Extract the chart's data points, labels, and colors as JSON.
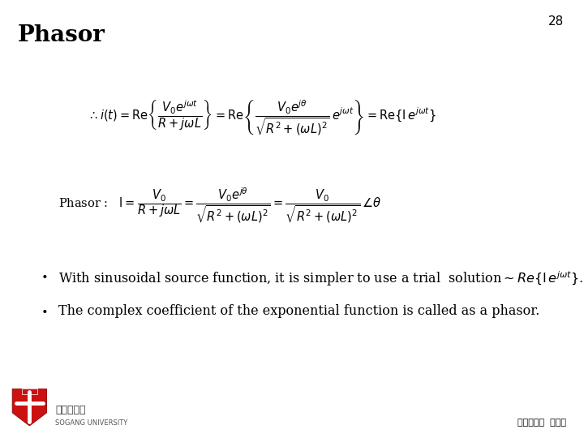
{
  "title": "Phasor",
  "slide_number": "28",
  "background_color": "#ffffff",
  "title_color": "#000000",
  "title_fontsize": 20,
  "eq1_fontsize": 10.5,
  "eq2_fontsize": 10.5,
  "bullet_fontsize": 11.5,
  "footer_fontsize": 8,
  "text_color": "#000000",
  "bullet2": "The complex coefficient of the exponential function is called as a phasor.",
  "footer_right": "전자공학과  이행선"
}
